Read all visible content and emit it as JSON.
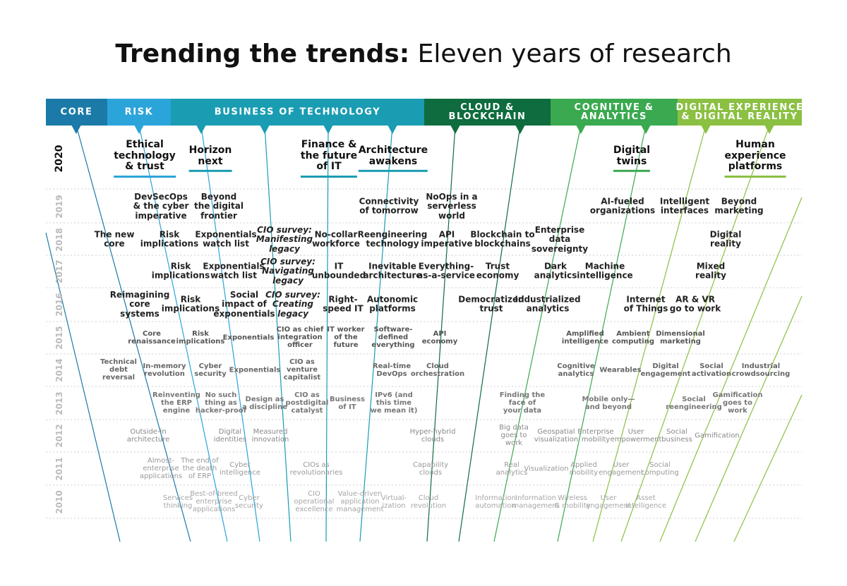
{
  "title": {
    "bold": "Trending the trends:",
    "regular": "Eleven years of research"
  },
  "categories": [
    {
      "label": "CORE",
      "color": "#1b7aa8"
    },
    {
      "label": "RISK",
      "color": "#2ba4da"
    },
    {
      "label": "BUSINESS OF TECHNOLOGY",
      "color": "#1a9cb2"
    },
    {
      "label": "CLOUD &\nBLOCKCHAIN",
      "color": "#0e6c3e"
    },
    {
      "label": "COGNITIVE &\nANALYTICS",
      "color": "#3aa94f"
    },
    {
      "label": "DIGITAL EXPERIENCE\n& DIGITAL REALITY",
      "color": "#8bc043"
    }
  ],
  "years": [
    {
      "year": "2020",
      "items": [
        "Ethical\ntechnology\n& trust",
        "Horizon\nnext",
        "Finance &\nthe future\nof IT",
        "Architecture\nawakens",
        "Digital\ntwins",
        "Human\nexperience\nplatforms"
      ]
    },
    {
      "year": "2019",
      "items": [
        "DevSecOps\n& the cyber\nimperative",
        "Beyond\nthe digital\nfrontier",
        "Connectivity\nof tomorrow",
        "NoOps in a\nserverless\nworld",
        "AI-fueled\norganizations",
        "Intelligent\ninterfaces",
        "Beyond\nmarketing"
      ]
    },
    {
      "year": "2018",
      "items": [
        "The new\ncore",
        "Risk\nimplications",
        "Exponentials\nwatch list",
        "CIO survey:\nManifesting\nlegacy",
        "No-collar\nworkforce",
        "Reengineering\ntechnology",
        "API\nimperative",
        "Blockchain to\nblockchains",
        "Enterprise\ndata\nsovereignty",
        "Digital\nreality"
      ]
    },
    {
      "year": "2017",
      "items": [
        "Risk\nimplications",
        "Exponentials\nwatch list",
        "CIO survey:\nNavigating\nlegacy",
        "IT\nunbounded",
        "Inevitable\narchitecture",
        "Everything-\nas-a-service",
        "Trust\neconomy",
        "Dark\nanalytics",
        "Machine\nintelligence",
        "Mixed\nreality"
      ]
    },
    {
      "year": "2016",
      "items": [
        "Reimagining\ncore\nsystems",
        "Risk\nimplications",
        "Social\nimpact of\nexponentials",
        "CIO survey:\nCreating\nlegacy",
        "Right-\nspeed IT",
        "Autonomic\nplatforms",
        "Democratized\ntrust",
        "Industrialized\nanalytics",
        "Internet\nof Things",
        "AR & VR\ngo to work"
      ]
    },
    {
      "year": "2015",
      "items": [
        "Core\nrenaissance",
        "Risk\nimplications",
        "Exponentials",
        "CIO as chief\nintegration\nofficer",
        "IT worker\nof the\nfuture",
        "Software-\ndefined\neverything",
        "API\neconomy",
        "Amplified\nintelligence",
        "Ambient\ncomputing",
        "Dimensional\nmarketing"
      ]
    },
    {
      "year": "2014",
      "items": [
        "Technical\ndebt\nreversal",
        "In-memory\nrevolution",
        "Cyber\nsecurity",
        "Exponentials",
        "CIO as\nventure\ncapitalist",
        "Real-time\nDevOps",
        "Cloud\norchestration",
        "Cognitive\nanalytics",
        "Wearables",
        "Digital\nengagement",
        "Social\nactivation",
        "Industrial\ncrowdsourcing"
      ]
    },
    {
      "year": "2013",
      "items": [
        "Reinventing\nthe ERP\nengine",
        "No such\nthing as\nhacker-proof",
        "Design as\na discipline",
        "CIO as\npostdigital\ncatalyst",
        "Business\nof IT",
        "IPv6 (and\nthis time\nwe mean it)",
        "Finding the\nface of\nyour data",
        "Mobile only—\nand beyond",
        "Social\nreengineering",
        "Gamification\ngoes to\nwork"
      ]
    },
    {
      "year": "2012",
      "items": [
        "Outside-in\narchitecture",
        "Digital\nidentities",
        "Measured\ninnovation",
        "Hyper-hybrid\nclouds",
        "Big data\ngoes to\nwork",
        "Geospatial\nvisualization",
        "Enterprise\nmobility",
        "User\nempowerment",
        "Social\nbusiness",
        "Gamification"
      ]
    },
    {
      "year": "2011",
      "items": [
        "Almost-\nenterprise\napplications",
        "The end of\nthe death\nof ERP",
        "Cyber\nintelligence",
        "CIOs as\nrevolutionaries",
        "Capability\nclouds",
        "Real\nanalytics",
        "Visualization",
        "Applied\nmobility",
        "User\nengagement",
        "Social\ncomputing"
      ]
    },
    {
      "year": "2010",
      "items": [
        "Services\nthinking",
        "Best-of-breed\nenterprise\napplications",
        "Cyber\nsecurity",
        "CIO\noperational\nexcellence",
        "Value-driven\napplication\nmanagement",
        "Virtual-\nization",
        "Cloud\nrevolution",
        "Information\nautomation",
        "Information\nmanagement",
        "Wireless\n& mobility",
        "User\nengagement",
        "Asset\nintelligence"
      ]
    }
  ]
}
